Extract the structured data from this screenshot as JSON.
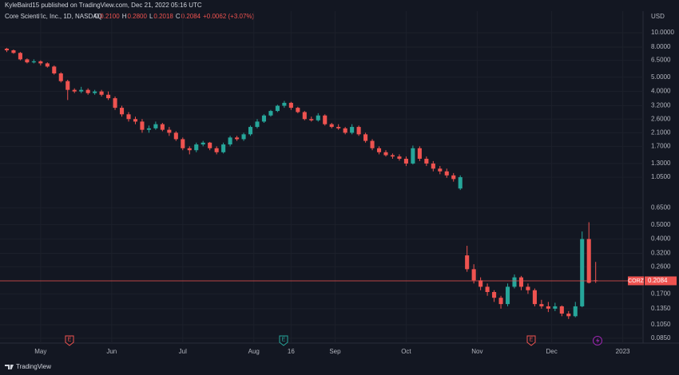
{
  "header": {
    "published": "KyleBaird15 published on TradingView.com, Dec 21, 2022 05:16 UTC",
    "symbol": "Core Scientific, Inc., 1D, NASDAQ",
    "ohlc": [
      {
        "key": "O",
        "text": "0.2100"
      },
      {
        "key": "H",
        "text": "0.2800"
      },
      {
        "key": "L",
        "text": "0.2018"
      },
      {
        "key": "C",
        "text": "0.2084"
      }
    ],
    "change": "+0.0062 (+3.07%)"
  },
  "footer": {
    "brand": "TradingView"
  },
  "chart_data": {
    "type": "candlestick",
    "currency": "USD",
    "ticker": "CORZ",
    "last_price": 0.2084,
    "log_scale": true,
    "grid": true,
    "up_color": "#26a69a",
    "down_color": "#ef5350",
    "price_line_color": "#ef5350",
    "ylim": [
      0.0789,
      14.0
    ],
    "xlim": [
      -1,
      94
    ],
    "yticks": [
      {
        "value": 10,
        "label": "10.0000"
      },
      {
        "value": 8,
        "label": "8.0000"
      },
      {
        "value": 6.5,
        "label": "6.5000"
      },
      {
        "value": 5,
        "label": "5.0000"
      },
      {
        "value": 4,
        "label": "4.0000"
      },
      {
        "value": 3.2,
        "label": "3.2000"
      },
      {
        "value": 2.6,
        "label": "2.6000"
      },
      {
        "value": 2.1,
        "label": "2.1000"
      },
      {
        "value": 1.7,
        "label": "1.7000"
      },
      {
        "value": 1.3,
        "label": "1.3000"
      },
      {
        "value": 1.05,
        "label": "1.0500"
      },
      {
        "value": 0.65,
        "label": "0.6500"
      },
      {
        "value": 0.5,
        "label": "0.5000"
      },
      {
        "value": 0.4,
        "label": "0.4000"
      },
      {
        "value": 0.32,
        "label": "0.3200"
      },
      {
        "value": 0.26,
        "label": "0.2600"
      },
      {
        "value": 0.17,
        "label": "0.1700"
      },
      {
        "value": 0.135,
        "label": "0.1350"
      },
      {
        "value": 0.105,
        "label": "0.1050"
      },
      {
        "value": 0.085,
        "label": "0.0850"
      }
    ],
    "xticks": [
      {
        "value": 5,
        "label": "May"
      },
      {
        "value": 15.5,
        "label": "Jun"
      },
      {
        "value": 26,
        "label": "Jul"
      },
      {
        "value": 36.5,
        "label": "Aug"
      },
      {
        "value": 42,
        "label": "16"
      },
      {
        "value": 48.5,
        "label": "Sep"
      },
      {
        "value": 59,
        "label": "Oct"
      },
      {
        "value": 69.5,
        "label": "Nov"
      },
      {
        "value": 80.5,
        "label": "Dec"
      },
      {
        "value": 91,
        "label": "2023"
      }
    ],
    "events": [
      "E",
      "E",
      "E"
    ],
    "ohlc": [
      [
        7.8,
        7.9,
        7.4,
        7.6
      ],
      [
        7.6,
        7.7,
        7.2,
        7.3
      ],
      [
        7.3,
        7.4,
        6.5,
        6.6
      ],
      [
        6.6,
        6.7,
        6.2,
        6.3
      ],
      [
        6.3,
        6.6,
        6.2,
        6.4
      ],
      [
        6.4,
        6.5,
        6.0,
        6.2
      ],
      [
        6.2,
        6.3,
        5.8,
        5.9
      ],
      [
        5.9,
        6.0,
        5.2,
        5.3
      ],
      [
        5.3,
        5.4,
        4.6,
        4.7
      ],
      [
        4.7,
        4.8,
        3.5,
        4.1
      ],
      [
        4.1,
        4.2,
        3.9,
        4.0
      ],
      [
        4.0,
        4.3,
        3.9,
        4.1
      ],
      [
        4.1,
        4.2,
        3.8,
        3.9
      ],
      [
        3.9,
        4.1,
        3.8,
        4.0
      ],
      [
        4.0,
        4.1,
        3.7,
        3.8
      ],
      [
        3.8,
        4.0,
        3.5,
        3.6
      ],
      [
        3.6,
        3.7,
        3.0,
        3.1
      ],
      [
        3.1,
        3.2,
        2.7,
        2.8
      ],
      [
        2.8,
        2.9,
        2.5,
        2.6
      ],
      [
        2.6,
        2.7,
        2.4,
        2.5
      ],
      [
        2.5,
        2.6,
        2.1,
        2.2
      ],
      [
        2.2,
        2.35,
        2.1,
        2.25
      ],
      [
        2.25,
        2.5,
        2.2,
        2.4
      ],
      [
        2.4,
        2.45,
        2.15,
        2.2
      ],
      [
        2.2,
        2.3,
        2.0,
        2.1
      ],
      [
        2.1,
        2.15,
        1.85,
        1.9
      ],
      [
        1.9,
        1.95,
        1.6,
        1.65
      ],
      [
        1.65,
        1.7,
        1.5,
        1.6
      ],
      [
        1.6,
        1.8,
        1.55,
        1.75
      ],
      [
        1.75,
        1.85,
        1.7,
        1.8
      ],
      [
        1.8,
        1.82,
        1.6,
        1.65
      ],
      [
        1.65,
        1.7,
        1.5,
        1.55
      ],
      [
        1.55,
        1.8,
        1.52,
        1.75
      ],
      [
        1.75,
        2.0,
        1.7,
        1.95
      ],
      [
        1.95,
        2.0,
        1.85,
        1.9
      ],
      [
        1.9,
        2.1,
        1.85,
        2.05
      ],
      [
        2.05,
        2.35,
        2.0,
        2.3
      ],
      [
        2.3,
        2.6,
        2.25,
        2.5
      ],
      [
        2.5,
        2.8,
        2.45,
        2.75
      ],
      [
        2.75,
        3.0,
        2.7,
        2.95
      ],
      [
        2.95,
        3.25,
        2.9,
        3.2
      ],
      [
        3.2,
        3.45,
        3.1,
        3.35
      ],
      [
        3.35,
        3.4,
        3.0,
        3.1
      ],
      [
        3.1,
        3.15,
        2.85,
        2.9
      ],
      [
        2.9,
        2.95,
        2.55,
        2.6
      ],
      [
        2.6,
        2.7,
        2.5,
        2.55
      ],
      [
        2.55,
        2.85,
        2.5,
        2.75
      ],
      [
        2.75,
        2.8,
        2.35,
        2.4
      ],
      [
        2.4,
        2.45,
        2.25,
        2.3
      ],
      [
        2.3,
        2.4,
        2.2,
        2.25
      ],
      [
        2.25,
        2.3,
        2.05,
        2.1
      ],
      [
        2.1,
        2.4,
        2.05,
        2.3
      ],
      [
        2.3,
        2.35,
        2.0,
        2.05
      ],
      [
        2.05,
        2.1,
        1.8,
        1.85
      ],
      [
        1.85,
        1.9,
        1.6,
        1.65
      ],
      [
        1.65,
        1.7,
        1.5,
        1.55
      ],
      [
        1.55,
        1.6,
        1.45,
        1.48
      ],
      [
        1.48,
        1.52,
        1.4,
        1.45
      ],
      [
        1.45,
        1.5,
        1.36,
        1.4
      ],
      [
        1.4,
        1.45,
        1.25,
        1.3
      ],
      [
        1.3,
        1.72,
        1.28,
        1.65
      ],
      [
        1.65,
        1.7,
        1.35,
        1.4
      ],
      [
        1.4,
        1.45,
        1.25,
        1.3
      ],
      [
        1.3,
        1.35,
        1.15,
        1.2
      ],
      [
        1.2,
        1.25,
        1.1,
        1.15
      ],
      [
        1.15,
        1.2,
        1.04,
        1.08
      ],
      [
        1.08,
        1.12,
        0.98,
        1.02
      ],
      [
        0.88,
        1.08,
        0.86,
        1.05
      ],
      [
        0.31,
        0.36,
        0.24,
        0.25
      ],
      [
        0.25,
        0.27,
        0.2,
        0.21
      ],
      [
        0.21,
        0.22,
        0.18,
        0.19
      ],
      [
        0.19,
        0.2,
        0.165,
        0.175
      ],
      [
        0.175,
        0.18,
        0.15,
        0.16
      ],
      [
        0.16,
        0.165,
        0.135,
        0.145
      ],
      [
        0.145,
        0.2,
        0.14,
        0.19
      ],
      [
        0.19,
        0.23,
        0.185,
        0.22
      ],
      [
        0.22,
        0.225,
        0.18,
        0.19
      ],
      [
        0.19,
        0.2,
        0.17,
        0.18
      ],
      [
        0.18,
        0.185,
        0.14,
        0.145
      ],
      [
        0.145,
        0.155,
        0.135,
        0.14
      ],
      [
        0.14,
        0.15,
        0.128,
        0.135
      ],
      [
        0.135,
        0.148,
        0.13,
        0.14
      ],
      [
        0.14,
        0.142,
        0.12,
        0.125
      ],
      [
        0.125,
        0.13,
        0.115,
        0.12
      ],
      [
        0.12,
        0.15,
        0.118,
        0.14
      ],
      [
        0.14,
        0.45,
        0.138,
        0.4
      ],
      [
        0.4,
        0.52,
        0.2,
        0.2022
      ],
      [
        0.21,
        0.28,
        0.2018,
        0.2084
      ]
    ]
  }
}
